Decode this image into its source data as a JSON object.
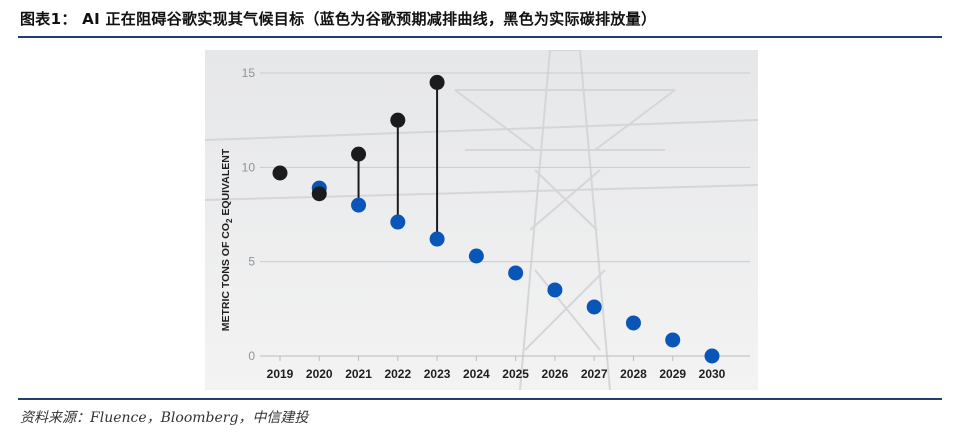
{
  "figure": {
    "title": "图表1： AI 正在阻碍谷歌实现其气候目标（蓝色为谷歌预期减排曲线，黑色为实际碳排放量）",
    "source": "资料来源：Fluence，Bloomberg，中信建投"
  },
  "colors": {
    "projected": "#0a56b8",
    "actual": "#1b1b1d",
    "rule": "#1f3f6e",
    "plot_bg": "#f0f0f0"
  },
  "chart_data": {
    "type": "scatter",
    "title": "",
    "ylabel_main": "METRIC TONS OF CO",
    "ylabel_sub": "2",
    "ylabel_tail": " EQUIVALENT",
    "xlabel": "",
    "x": [
      2019,
      2020,
      2021,
      2022,
      2023,
      2024,
      2025,
      2026,
      2027,
      2028,
      2029,
      2030
    ],
    "ylim": [
      0,
      15
    ],
    "yticks": [
      0,
      5,
      10,
      15
    ],
    "grid": true,
    "series": [
      {
        "key": "actual",
        "values": [
          9.7,
          8.6,
          10.7,
          12.5,
          14.5,
          null,
          null,
          null,
          null,
          null,
          null,
          null
        ]
      },
      {
        "key": "projected",
        "values": [
          null,
          8.9,
          8.0,
          7.1,
          6.2,
          5.3,
          4.4,
          3.5,
          2.6,
          1.75,
          0.85,
          0.0
        ]
      }
    ]
  }
}
